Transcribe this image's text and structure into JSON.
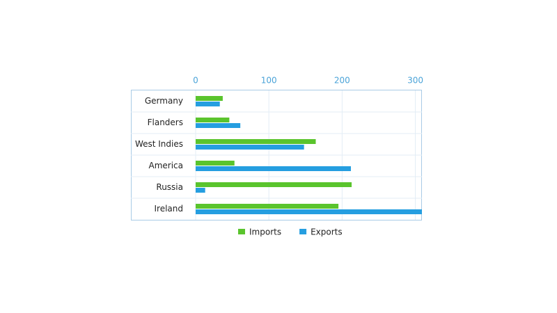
{
  "chart_data": {
    "type": "hbar",
    "categories": [
      "Germany",
      "Flanders",
      "West Indies",
      "America",
      "Russia",
      "Ireland"
    ],
    "series": [
      {
        "name": "Imports",
        "color": "#5ac42d",
        "values": [
          37,
          46,
          164,
          53,
          213,
          195
        ]
      },
      {
        "name": "Exports",
        "color": "#259ee0",
        "values": [
          33,
          61,
          148,
          212,
          13,
          309
        ]
      }
    ],
    "xlim": [
      0,
      309
    ],
    "xticks": [
      0,
      100,
      200,
      300
    ],
    "grid": true
  }
}
